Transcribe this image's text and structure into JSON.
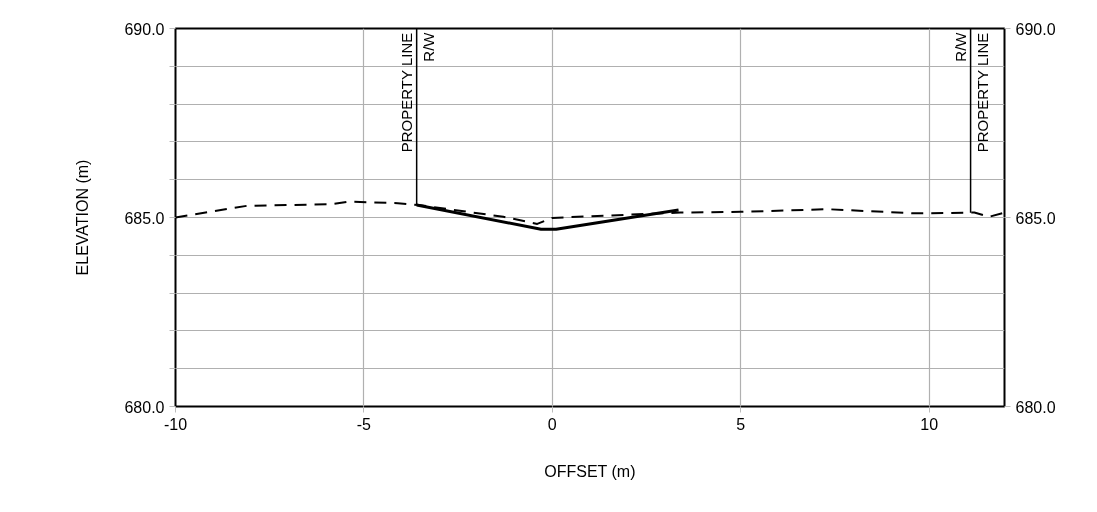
{
  "chart_data": {
    "type": "line",
    "xlabel": "OFFSET (m)",
    "ylabel": "ELEVATION (m)",
    "xlim": [
      -10,
      12
    ],
    "xticks": [
      -10,
      -5,
      0,
      5,
      10
    ],
    "ylim": [
      680,
      690
    ],
    "yticks": [
      {
        "value": 680,
        "label": "680.0"
      },
      {
        "value": 681,
        "label": null
      },
      {
        "value": 682,
        "label": null
      },
      {
        "value": 683,
        "label": null
      },
      {
        "value": 684,
        "label": null
      },
      {
        "value": 685,
        "label": "685.0"
      },
      {
        "value": 686,
        "label": null
      },
      {
        "value": 687,
        "label": null
      },
      {
        "value": 688,
        "label": null
      },
      {
        "value": 689,
        "label": null
      },
      {
        "value": 690,
        "label": "690.0"
      }
    ],
    "y2lim": [
      680,
      690
    ],
    "y2ticks": [
      {
        "value": 680,
        "label": "680.0"
      },
      {
        "value": 685,
        "label": "685.0"
      },
      {
        "value": 690,
        "label": "690.0"
      }
    ],
    "grid": true,
    "series": [
      {
        "color": "#000000",
        "line_style": "dashed",
        "x": [
          -10,
          -8.1,
          -5.9,
          -5.4,
          -4.1,
          -3.55,
          -1.3,
          -0.4,
          0.0,
          3.4,
          5.0,
          7.3,
          9.6,
          11.2,
          11.6,
          12
        ],
        "values": [
          685.0,
          685.31,
          685.35,
          685.42,
          685.38,
          685.33,
          685.02,
          684.83,
          684.99,
          685.13,
          685.15,
          685.22,
          685.11,
          685.13,
          685.02,
          685.13
        ]
      },
      {
        "color": "#000000",
        "line_style": "solid",
        "x": [
          -3.6,
          -0.3,
          0.1,
          3.35
        ],
        "values": [
          685.33,
          684.69,
          684.69,
          685.2
        ]
      }
    ],
    "ref_lines": [
      {
        "axis": "x",
        "value": -3.6,
        "label": "PROPERTY LINE",
        "color": "#000000"
      },
      {
        "axis": "x",
        "value": 11.1,
        "label": "PROPERTY LINE",
        "color": "#000000"
      }
    ],
    "annotations": [
      {
        "text": "R/W",
        "x": -3.6,
        "y": 690
      },
      {
        "text": "R/W",
        "x": 11.1,
        "y": 690
      }
    ]
  }
}
